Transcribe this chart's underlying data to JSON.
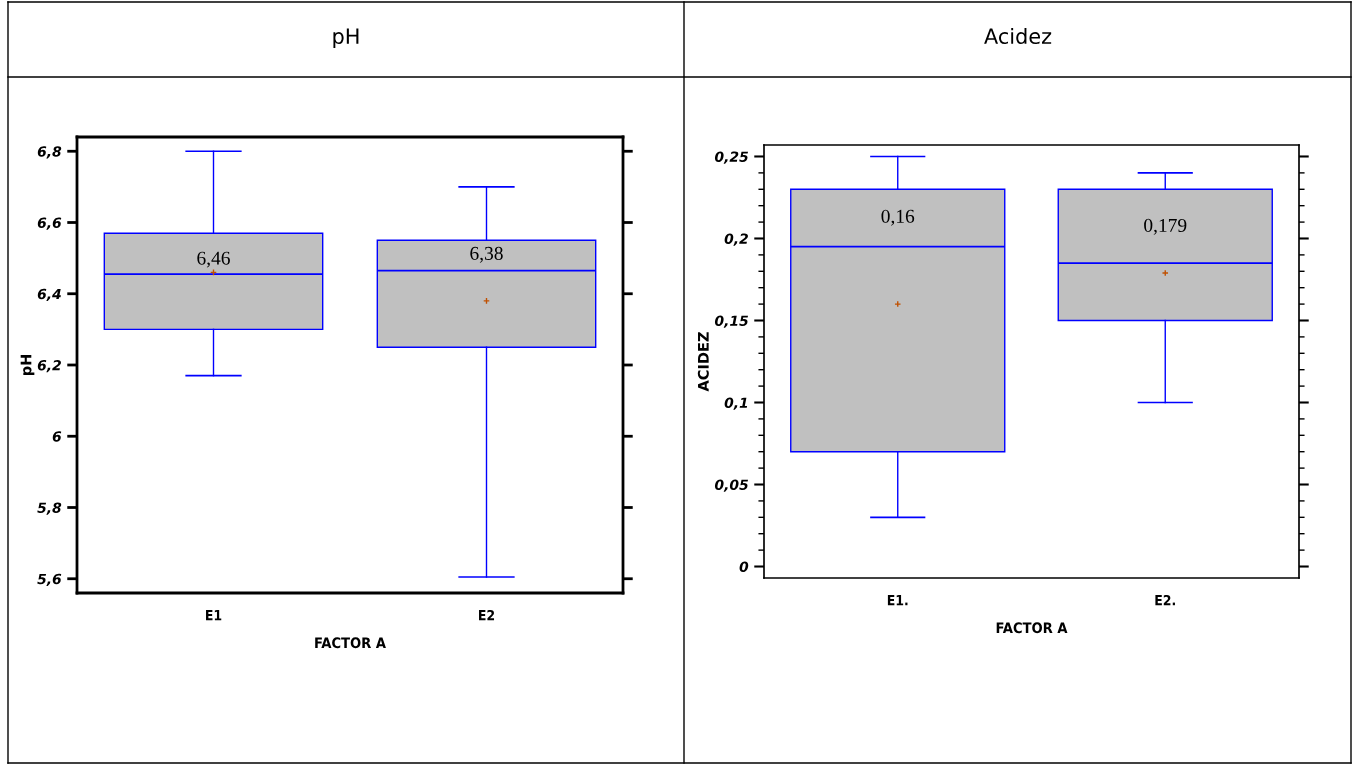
{
  "chart_data": [
    {
      "type": "box",
      "title": "pH",
      "xlabel": "FACTOR A",
      "ylabel": "pH",
      "categories": [
        "E1",
        "E2"
      ],
      "series": [
        {
          "color": "#c0c0c0",
          "boxes": [
            {
              "low": 6.17,
              "q1": 6.3,
              "median": 6.455,
              "q3": 6.57,
              "high": 6.8,
              "mean": 6.46
            },
            {
              "low": 5.605,
              "q1": 6.25,
              "median": 6.465,
              "q3": 6.55,
              "high": 6.7,
              "mean": 6.38
            }
          ]
        }
      ],
      "ylim": [
        5.56,
        6.84
      ],
      "yticks": [
        {
          "value": 5.6,
          "label": "5,6"
        },
        {
          "value": 5.8,
          "label": "5,8"
        },
        {
          "value": 6.0,
          "label": "6"
        },
        {
          "value": 6.2,
          "label": "6,2"
        },
        {
          "value": 6.4,
          "label": "6,4"
        },
        {
          "value": 6.6,
          "label": "6,6"
        },
        {
          "value": 6.8,
          "label": "6,8"
        }
      ],
      "annotations": [
        "6,46",
        "6,38"
      ],
      "grid": false
    },
    {
      "type": "box",
      "title": "Acidez",
      "xlabel": "FACTOR A",
      "ylabel": "ACIDEZ",
      "categories": [
        "E1.",
        "E2."
      ],
      "series": [
        {
          "color": "#c0c0c0",
          "boxes": [
            {
              "low": 0.03,
              "q1": 0.07,
              "median": 0.195,
              "q3": 0.23,
              "high": 0.25,
              "mean": 0.16
            },
            {
              "low": 0.1,
              "q1": 0.15,
              "median": 0.185,
              "q3": 0.23,
              "high": 0.24,
              "mean": 0.179
            }
          ]
        }
      ],
      "ylim": [
        -0.007,
        0.257
      ],
      "yticks": [
        {
          "value": 0,
          "label": "0"
        },
        {
          "value": 0.01,
          "label": null
        },
        {
          "value": 0.02,
          "label": null
        },
        {
          "value": 0.03,
          "label": null
        },
        {
          "value": 0.04,
          "label": null
        },
        {
          "value": 0.05,
          "label": "0,05"
        },
        {
          "value": 0.06,
          "label": null
        },
        {
          "value": 0.07,
          "label": null
        },
        {
          "value": 0.08,
          "label": null
        },
        {
          "value": 0.09,
          "label": null
        },
        {
          "value": 0.1,
          "label": "0,1"
        },
        {
          "value": 0.11,
          "label": null
        },
        {
          "value": 0.12,
          "label": null
        },
        {
          "value": 0.13,
          "label": null
        },
        {
          "value": 0.14,
          "label": null
        },
        {
          "value": 0.15,
          "label": "0,15"
        },
        {
          "value": 0.16,
          "label": null
        },
        {
          "value": 0.17,
          "label": null
        },
        {
          "value": 0.18,
          "label": null
        },
        {
          "value": 0.19,
          "label": null
        },
        {
          "value": 0.2,
          "label": "0,2"
        },
        {
          "value": 0.21,
          "label": null
        },
        {
          "value": 0.22,
          "label": null
        },
        {
          "value": 0.23,
          "label": null
        },
        {
          "value": 0.24,
          "label": null
        },
        {
          "value": 0.25,
          "label": "0,25"
        }
      ],
      "annotations": [
        "0,16",
        "0,179"
      ],
      "grid": false
    }
  ]
}
